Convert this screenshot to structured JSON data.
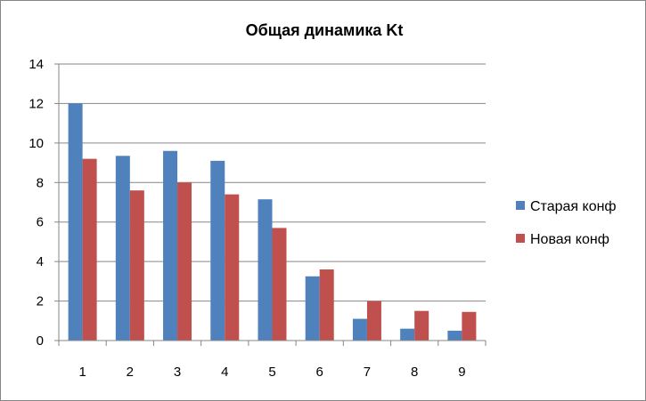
{
  "chart_data": {
    "type": "bar",
    "title": "Общая динамика Kt",
    "xlabel": "",
    "ylabel": "",
    "categories": [
      "1",
      "2",
      "3",
      "4",
      "5",
      "6",
      "7",
      "8",
      "9"
    ],
    "ylim": [
      0,
      14
    ],
    "yticks": [
      "0",
      "2",
      "4",
      "6",
      "8",
      "10",
      "12",
      "14"
    ],
    "grid": true,
    "legend_position": "right",
    "series": [
      {
        "name": "Старая конф",
        "color": "#4F81BD",
        "values": [
          12.0,
          9.35,
          9.6,
          9.1,
          7.15,
          3.25,
          1.1,
          0.6,
          0.5
        ]
      },
      {
        "name": "Новая конф",
        "color": "#C0504D",
        "values": [
          9.2,
          7.6,
          8.0,
          7.4,
          5.7,
          3.6,
          2.0,
          1.5,
          1.45
        ]
      }
    ]
  }
}
